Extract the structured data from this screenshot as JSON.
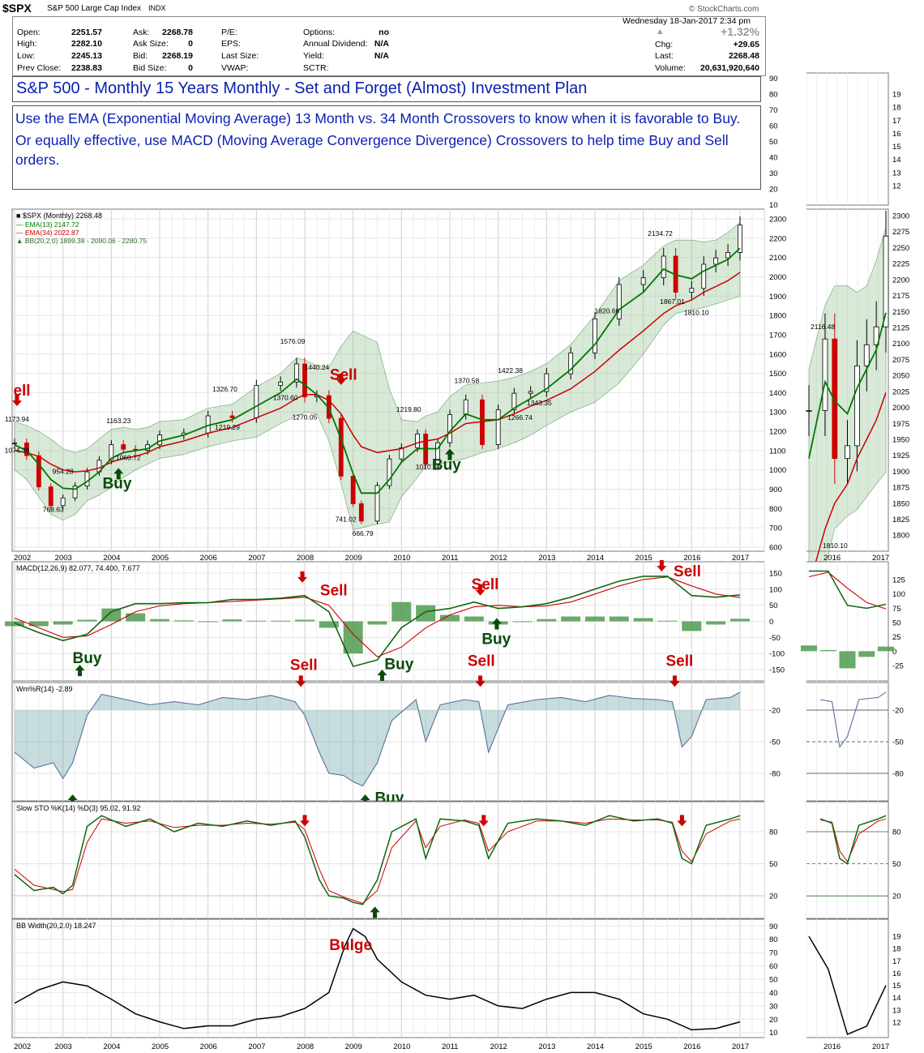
{
  "header": {
    "symbol": "$SPX",
    "name": "S&P 500 Large Cap Index",
    "exchange": "INDX",
    "brand": "© StockCharts.com",
    "datetime": "Wednesday  18-Jan-2017  2:34 pm"
  },
  "quote": {
    "col1": [
      [
        "Open:",
        "2251.57"
      ],
      [
        "High:",
        "2282.10"
      ],
      [
        "Low:",
        "2245.13"
      ],
      [
        "Prev Close:",
        "2238.83"
      ]
    ],
    "col2": [
      [
        "Ask:",
        "2268.78"
      ],
      [
        "Ask Size:",
        "0"
      ],
      [
        "Bid:",
        "2268.19"
      ],
      [
        "Bid Size:",
        "0"
      ]
    ],
    "col3": [
      [
        "P/E:",
        ""
      ],
      [
        "EPS:",
        ""
      ],
      [
        "Last Size:",
        ""
      ],
      [
        "VWAP:",
        ""
      ]
    ],
    "col4": [
      [
        "Options:",
        "no"
      ],
      [
        "Annual Dividend:",
        "N/A"
      ],
      [
        "Yield:",
        "N/A"
      ],
      [
        "SCTR:",
        ""
      ]
    ],
    "pct_change": "+1.32%",
    "col5": [
      [
        "Chg:",
        "+29.65"
      ],
      [
        "Last:",
        "2268.48"
      ],
      [
        "Volume:",
        "20,631,920,640"
      ]
    ]
  },
  "title_main": "S&P 500 - Monthly 15 Years Monthly - Set and Forget (Almost) Investment Plan",
  "title_lines": [
    "Use the EMA (Exponential Moving Average) 13 Month vs. 34 Month Crossovers to know when it is favorable to Buy.",
    "Or equally effective, use MACD (Moving Average Convergence Divergence) Crossovers to help time Buy and Sell orders."
  ],
  "colors": {
    "up": "#000000",
    "down": "#cc0000",
    "ema13": "#007700",
    "ema34": "#cc0000",
    "band": "#8fbf8f",
    "macdhist": "#4f9a4f",
    "wr": "#5a6fa0",
    "buy": "#0a4a0a",
    "sell": "#cc0000",
    "text_blue": "#0a1fb0"
  },
  "chart_data": [
    {
      "type": "line",
      "name": "price",
      "legend": [
        "$SPX (Monthly) 2268.48",
        "EMA(13) 2147.72",
        "EMA(34) 2022.87",
        "BB(20,2.0) 1899.38 - 2090.06 - 2280.75"
      ],
      "x_tick_labels": [
        "2002",
        "2003",
        "2004",
        "2005",
        "2006",
        "2007",
        "2008",
        "2009",
        "2010",
        "2011",
        "2012",
        "2013",
        "2014",
        "2015",
        "2016",
        "2017"
      ],
      "y_tick_labels": [
        "600",
        "700",
        "800",
        "900",
        "1000",
        "1100",
        "1200",
        "1300",
        "1400",
        "1500",
        "1600",
        "1700",
        "1800",
        "1900",
        "2000",
        "2100",
        "2200",
        "2300"
      ],
      "ylim": [
        600,
        2300
      ],
      "x": [
        2002.0,
        2002.25,
        2002.5,
        2002.75,
        2003.0,
        2003.25,
        2003.5,
        2003.75,
        2004.0,
        2004.25,
        2004.5,
        2004.75,
        2005.0,
        2005.5,
        2006.0,
        2006.5,
        2007.0,
        2007.5,
        2007.83,
        2008.0,
        2008.25,
        2008.5,
        2008.75,
        2009.0,
        2009.17,
        2009.5,
        2009.75,
        2010.0,
        2010.33,
        2010.5,
        2010.75,
        2011.0,
        2011.33,
        2011.67,
        2012.0,
        2012.33,
        2012.67,
        2013.0,
        2013.5,
        2014.0,
        2014.5,
        2015.0,
        2015.42,
        2015.67,
        2016.0,
        2016.25,
        2016.5,
        2016.75,
        2017.0
      ],
      "close": [
        1140,
        1074,
        912,
        815,
        855,
        917,
        990,
        1050,
        1131,
        1107,
        1101,
        1130,
        1181,
        1191,
        1280,
        1270,
        1438,
        1455,
        1549,
        1378,
        1385,
        1267,
        968,
        825,
        735,
        919,
        1057,
        1115,
        1186,
        1030,
        1141,
        1286,
        1363,
        1131,
        1312,
        1397,
        1406,
        1498,
        1606,
        1782,
        1960,
        1995,
        2107,
        1920,
        1940,
        2065,
        2098,
        2126,
        2268
      ],
      "ema13": [
        1130,
        1100,
        1030,
        950,
        905,
        900,
        940,
        990,
        1060,
        1090,
        1100,
        1110,
        1150,
        1180,
        1230,
        1260,
        1330,
        1400,
        1470,
        1440,
        1390,
        1320,
        1160,
        980,
        880,
        880,
        950,
        1040,
        1110,
        1110,
        1110,
        1200,
        1290,
        1260,
        1260,
        1320,
        1370,
        1420,
        1520,
        1650,
        1830,
        1920,
        2040,
        2010,
        1990,
        2030,
        2060,
        2090,
        2148
      ],
      "ema34": [
        1100,
        1090,
        1070,
        1030,
        1000,
        990,
        995,
        1010,
        1040,
        1060,
        1070,
        1090,
        1120,
        1150,
        1190,
        1220,
        1270,
        1320,
        1370,
        1390,
        1390,
        1360,
        1290,
        1180,
        1120,
        1090,
        1100,
        1110,
        1140,
        1150,
        1160,
        1190,
        1240,
        1250,
        1260,
        1290,
        1330,
        1360,
        1420,
        1510,
        1620,
        1720,
        1810,
        1850,
        1880,
        1920,
        1950,
        1980,
        2023
      ],
      "bb_upper": [
        1250,
        1230,
        1200,
        1160,
        1110,
        1090,
        1110,
        1160,
        1210,
        1220,
        1210,
        1220,
        1250,
        1260,
        1320,
        1340,
        1430,
        1500,
        1580,
        1570,
        1540,
        1530,
        1640,
        1720,
        1700,
        1660,
        1420,
        1260,
        1250,
        1280,
        1300,
        1380,
        1440,
        1450,
        1460,
        1480,
        1510,
        1550,
        1650,
        1800,
        1980,
        2060,
        2160,
        2190,
        2190,
        2180,
        2190,
        2230,
        2281
      ],
      "bb_lower": [
        1000,
        950,
        860,
        770,
        740,
        770,
        840,
        870,
        910,
        960,
        1000,
        1030,
        1060,
        1080,
        1120,
        1150,
        1170,
        1240,
        1280,
        1300,
        1290,
        1150,
        930,
        690,
        700,
        720,
        730,
        860,
        960,
        1020,
        1030,
        1040,
        1060,
        1090,
        1110,
        1140,
        1180,
        1230,
        1300,
        1350,
        1450,
        1600,
        1750,
        1810,
        1830,
        1840,
        1860,
        1880,
        1899
      ],
      "labels": [
        "1173.94",
        "1074.36",
        "954.28",
        "768.63",
        "1163.23",
        "1060.72",
        "1326.70",
        "1219.29",
        "1576.09",
        "1370.60",
        "1440.24",
        "1270.05",
        "741.02",
        "666.79",
        "1219.80",
        "1010.91",
        "1370.58",
        "1422.38",
        "1266.74",
        "1343.35",
        "1820.66",
        "2134.72",
        "1867.01",
        "1810.10"
      ],
      "label_x": [
        2002.05,
        2002.05,
        2003.0,
        2002.8,
        2004.15,
        2004.35,
        2006.35,
        2006.4,
        2007.75,
        2007.6,
        2008.25,
        2008.0,
        2008.85,
        2009.2,
        2010.15,
        2010.55,
        2011.35,
        2012.25,
        2012.45,
        2012.85,
        2014.25,
        2015.35,
        2015.6,
        2016.1
      ],
      "label_y": [
        1250,
        1088,
        980,
        782,
        1242,
        1052,
        1405,
        1208,
        1653,
        1362,
        1520,
        1262,
        732,
        658,
        1300,
        1002,
        1450,
        1503,
        1258,
        1335,
        1812,
        2212,
        1860,
        1802
      ],
      "annotations": [
        {
          "text": "Buy",
          "x": 2004.12,
          "y": 905
        },
        {
          "text": "Buy",
          "x": 2010.93,
          "y": 1001
        },
        {
          "text": "Sell",
          "x": 2008.8,
          "y": 1466
        },
        {
          "text": "ell",
          "x": 2001.97,
          "y": 1385
        }
      ],
      "arrows": [
        {
          "dir": "up",
          "x": 2004.15,
          "y": 1010
        },
        {
          "dir": "up",
          "x": 2011.0,
          "y": 1110
        },
        {
          "dir": "down",
          "x": 2008.75,
          "y": 1440
        },
        {
          "dir": "down",
          "x": 2001.95,
          "y": 1330
        }
      ]
    },
    {
      "type": "bar",
      "name": "macd",
      "legend": "MACD(12,26,9) 82.077, 74.400, 7.677",
      "y_tick_labels": [
        "-150",
        "-100",
        "-50",
        "0",
        "50",
        "100",
        "150"
      ],
      "ylim": [
        -165,
        165
      ],
      "x": [
        2002.0,
        2002.5,
        2003.0,
        2003.5,
        2004.0,
        2004.5,
        2005.0,
        2005.5,
        2006.0,
        2006.5,
        2007.0,
        2007.5,
        2008.0,
        2008.5,
        2009.0,
        2009.5,
        2010.0,
        2010.5,
        2011.0,
        2011.5,
        2012.0,
        2012.5,
        2013.0,
        2013.5,
        2014.0,
        2014.5,
        2015.0,
        2015.5,
        2016.0,
        2016.5,
        2017.0
      ],
      "macd": [
        -5,
        -35,
        -60,
        -40,
        30,
        55,
        55,
        58,
        58,
        68,
        68,
        72,
        80,
        30,
        -140,
        -120,
        -20,
        30,
        40,
        60,
        40,
        45,
        55,
        75,
        100,
        125,
        140,
        140,
        80,
        75,
        82
      ],
      "signal": [
        10,
        -20,
        -50,
        -45,
        -10,
        30,
        48,
        55,
        58,
        62,
        66,
        70,
        75,
        50,
        -40,
        -110,
        -80,
        -20,
        20,
        45,
        50,
        45,
        48,
        60,
        85,
        110,
        130,
        138,
        110,
        85,
        74
      ],
      "hist": [
        -15,
        -15,
        -10,
        5,
        40,
        25,
        7,
        3,
        0,
        6,
        2,
        2,
        5,
        -20,
        -100,
        -10,
        60,
        50,
        20,
        15,
        -10,
        0,
        7,
        15,
        15,
        15,
        10,
        2,
        -30,
        -10,
        8
      ],
      "annotations": [
        {
          "text": "Sell",
          "x": 2008.6,
          "y": 80
        },
        {
          "text": "Buy",
          "x": 2003.5,
          "y": -130
        },
        {
          "text": "Buy",
          "x": 2009.95,
          "y": -148
        },
        {
          "text": "Sell",
          "x": 2011.73,
          "y": 99
        },
        {
          "text": "Buy",
          "x": 2011.96,
          "y": -70
        },
        {
          "text": "Sell",
          "x": 2015.91,
          "y": 140
        }
      ],
      "arrows": [
        {
          "dir": "down",
          "x": 2007.95,
          "y": 120
        },
        {
          "dir": "up",
          "x": 2003.35,
          "y": -135
        },
        {
          "dir": "up",
          "x": 2009.6,
          "y": -150
        },
        {
          "dir": "down",
          "x": 2011.63,
          "y": 80
        },
        {
          "dir": "up",
          "x": 2011.97,
          "y": 10
        },
        {
          "dir": "down",
          "x": 2015.38,
          "y": 155
        }
      ]
    },
    {
      "type": "area",
      "name": "williams_r",
      "legend": "Wm%R(14) -2.89",
      "y_tick_labels": [
        "-20",
        "-50",
        "-80"
      ],
      "ylim": [
        -100,
        0
      ],
      "x": [
        2002.0,
        2002.4,
        2002.8,
        2003.0,
        2003.2,
        2003.5,
        2003.8,
        2004.3,
        2004.8,
        2005.3,
        2005.8,
        2006.3,
        2006.8,
        2007.3,
        2007.8,
        2008.0,
        2008.3,
        2008.5,
        2008.8,
        2009.0,
        2009.2,
        2009.5,
        2009.8,
        2010.3,
        2010.5,
        2010.8,
        2011.3,
        2011.6,
        2011.8,
        2012.2,
        2012.8,
        2013.3,
        2013.8,
        2014.3,
        2014.8,
        2015.3,
        2015.6,
        2015.8,
        2016.0,
        2016.3,
        2016.8,
        2017.0
      ],
      "values": [
        -60,
        -75,
        -70,
        -85,
        -70,
        -25,
        -5,
        -10,
        -15,
        -12,
        -15,
        -8,
        -10,
        -6,
        -12,
        -25,
        -60,
        -80,
        -82,
        -88,
        -92,
        -70,
        -30,
        -10,
        -50,
        -15,
        -10,
        -12,
        -60,
        -15,
        -10,
        -8,
        -12,
        -6,
        -9,
        -10,
        -12,
        -55,
        -45,
        -10,
        -8,
        -3
      ],
      "annotations": [
        {
          "text": "Sell",
          "x": 2007.98,
          "y": 18
        },
        {
          "text": "Sell",
          "x": 2011.65,
          "y": 22
        },
        {
          "text": "Sell",
          "x": 2015.75,
          "y": 22
        },
        {
          "text": "Buy",
          "x": 2009.75,
          "y": -108
        }
      ],
      "arrows": [
        {
          "dir": "down",
          "x": 2007.92,
          "y": 2
        },
        {
          "dir": "down",
          "x": 2011.63,
          "y": 2
        },
        {
          "dir": "down",
          "x": 2015.65,
          "y": 2
        },
        {
          "dir": "up",
          "x": 2003.2,
          "y": -100
        },
        {
          "dir": "up",
          "x": 2009.25,
          "y": -100
        }
      ]
    },
    {
      "type": "line",
      "name": "slow_stochastic",
      "legend": "Slow STO %K(14) %D(3) 95.02, 91.92",
      "y_tick_labels": [
        "80",
        "50",
        "20"
      ],
      "ylim": [
        5,
        102
      ],
      "x": [
        2002.0,
        2002.4,
        2002.8,
        2003.0,
        2003.2,
        2003.5,
        2003.8,
        2004.3,
        2004.8,
        2005.3,
        2005.8,
        2006.3,
        2006.8,
        2007.3,
        2007.8,
        2008.0,
        2008.3,
        2008.5,
        2008.8,
        2009.0,
        2009.2,
        2009.5,
        2009.8,
        2010.3,
        2010.5,
        2010.8,
        2011.3,
        2011.6,
        2011.8,
        2012.2,
        2012.8,
        2013.3,
        2013.8,
        2014.3,
        2014.8,
        2015.3,
        2015.6,
        2015.8,
        2016.0,
        2016.3,
        2016.8,
        2017.0
      ],
      "k": [
        40,
        25,
        28,
        22,
        30,
        85,
        95,
        85,
        92,
        80,
        88,
        85,
        90,
        86,
        90,
        75,
        35,
        20,
        18,
        14,
        12,
        35,
        80,
        92,
        55,
        92,
        90,
        86,
        55,
        88,
        92,
        90,
        86,
        95,
        90,
        92,
        88,
        55,
        50,
        86,
        92,
        95
      ],
      "d": [
        45,
        30,
        26,
        24,
        26,
        70,
        92,
        88,
        90,
        84,
        86,
        86,
        88,
        87,
        89,
        82,
        45,
        25,
        19,
        16,
        13,
        25,
        65,
        90,
        65,
        85,
        91,
        88,
        62,
        80,
        90,
        90,
        88,
        92,
        91,
        91,
        89,
        62,
        52,
        78,
        90,
        92
      ],
      "arrows": [
        {
          "dir": "down",
          "x": 2008.0,
          "y": 85
        },
        {
          "dir": "down",
          "x": 2011.7,
          "y": 85
        },
        {
          "dir": "down",
          "x": 2015.8,
          "y": 85
        },
        {
          "dir": "up",
          "x": 2009.45,
          "y": 10
        }
      ]
    },
    {
      "type": "line",
      "name": "bb_width",
      "legend": "BB Width(20,2.0) 18.247",
      "y_tick_labels": [
        "10",
        "20",
        "30",
        "40",
        "50",
        "60",
        "70",
        "80",
        "90"
      ],
      "ylim": [
        8,
        92
      ],
      "x": [
        2002.0,
        2002.5,
        2003.0,
        2003.5,
        2004.0,
        2004.5,
        2005.0,
        2005.5,
        2006.0,
        2006.5,
        2007.0,
        2007.5,
        2008.0,
        2008.5,
        2008.83,
        2009.0,
        2009.25,
        2009.5,
        2010.0,
        2010.5,
        2011.0,
        2011.5,
        2012.0,
        2012.5,
        2013.0,
        2013.5,
        2014.0,
        2014.5,
        2015.0,
        2015.5,
        2016.0,
        2016.5,
        2017.0
      ],
      "values": [
        32,
        42,
        48,
        45,
        35,
        24,
        18,
        13,
        15,
        15,
        20,
        22,
        28,
        40,
        75,
        88,
        82,
        65,
        48,
        38,
        35,
        38,
        30,
        28,
        35,
        40,
        40,
        35,
        24,
        20,
        12,
        13,
        18
      ],
      "annotations": [
        {
          "text": "Bulge",
          "x": 2008.95,
          "y": 72
        }
      ]
    },
    {
      "type": "line",
      "name": "zoom_price",
      "x_tick_labels": [
        "2016",
        "2017"
      ],
      "y_tick_labels": [
        "1800",
        "1825",
        "1850",
        "1875",
        "1900",
        "1925",
        "1950",
        "1975",
        "2000",
        "2025",
        "2050",
        "2075",
        "2100",
        "2125",
        "2150",
        "2175",
        "2200",
        "2225",
        "2250",
        "2275",
        "2300"
      ],
      "ylim": [
        1780,
        2300
      ],
      "label": "2116.48",
      "label2": "1810.10",
      "upper_ticks": [
        "12",
        "13",
        "14",
        "15",
        "16",
        "17",
        "18",
        "19"
      ]
    },
    {
      "type": "line",
      "name": "zoom_macd",
      "y_tick_labels": [
        "125",
        "100",
        "75",
        "50",
        "25",
        "0",
        "-25"
      ]
    },
    {
      "type": "line",
      "name": "zoom_wr",
      "y_tick_labels": [
        "-20",
        "-50",
        "-80"
      ]
    },
    {
      "type": "line",
      "name": "zoom_sto",
      "y_tick_labels": [
        "80",
        "50",
        "20"
      ]
    },
    {
      "type": "line",
      "name": "zoom_bbw",
      "y_tick_labels": [
        "12",
        "13",
        "14",
        "15",
        "16",
        "17",
        "18",
        "19"
      ],
      "x_tick_labels": [
        "2016",
        "2017"
      ]
    }
  ]
}
